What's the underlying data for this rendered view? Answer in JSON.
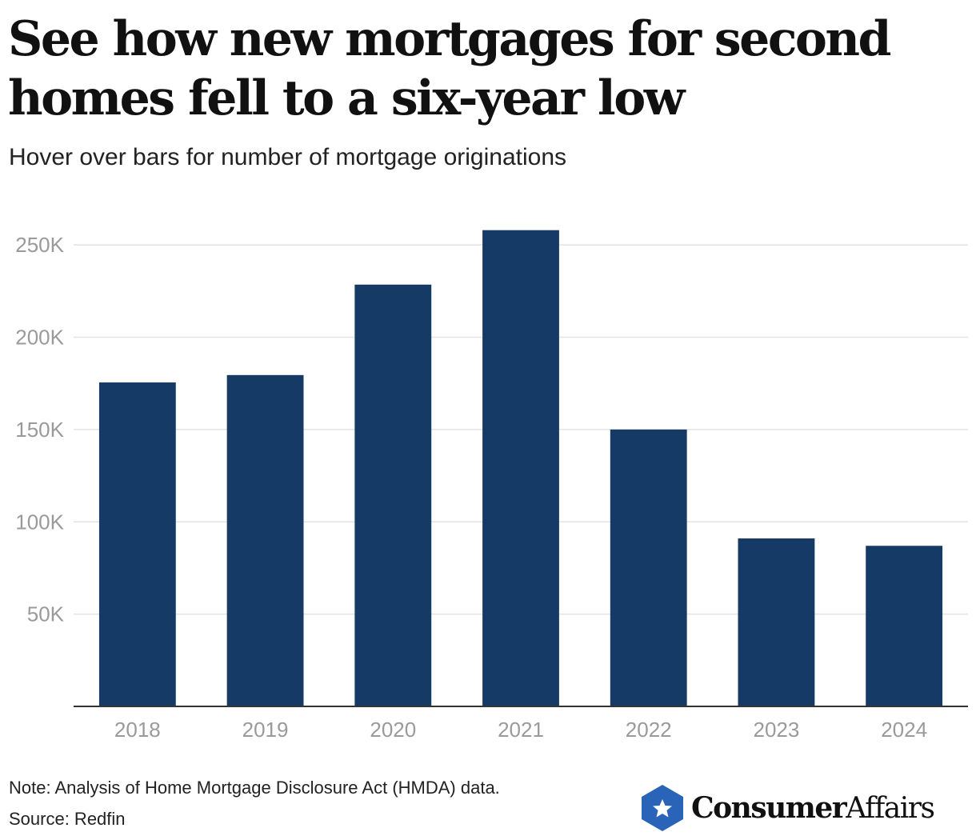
{
  "title": "See how new mortgages for second homes fell to a six-year low",
  "subtitle": "Hover over bars for number of mortgage originations",
  "note": "Note: Analysis of Home Mortgage Disclosure Act (HMDA) data.",
  "source": "Source: Redfin",
  "logo": {
    "bold": "Consumer",
    "regular": "Affairs"
  },
  "colors": {
    "bar": "#163a66",
    "grid": "#e3e3e3",
    "axis": "#333333",
    "tick": "#9a9a9a",
    "logo": "#2a64b8"
  },
  "chart_data": {
    "type": "bar",
    "categories": [
      "2018",
      "2019",
      "2020",
      "2021",
      "2022",
      "2023",
      "2024"
    ],
    "values": [
      175500,
      179500,
      228500,
      258000,
      150000,
      91000,
      87000
    ],
    "ylim": [
      0,
      270000
    ],
    "yticks": [
      50000,
      100000,
      150000,
      200000,
      250000
    ],
    "ytick_labels": [
      "50K",
      "100K",
      "150K",
      "200K",
      "250K"
    ],
    "grid": true,
    "xlabel": "",
    "ylabel": ""
  }
}
